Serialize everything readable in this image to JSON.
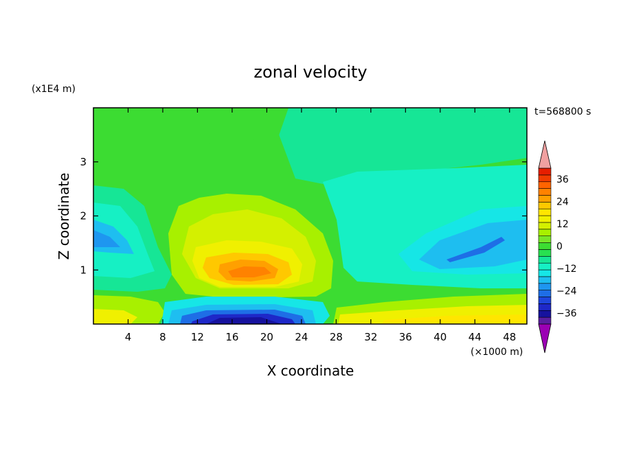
{
  "chart_data": {
    "type": "heatmap",
    "title": "zonal velocity",
    "xlabel": "X coordinate",
    "ylabel": "Z coordinate",
    "x_unit": "(×1000 m)",
    "y_unit": "(x1E4 m)",
    "time_label": "t=568800 s",
    "xlim": [
      0,
      50
    ],
    "ylim": [
      0,
      4
    ],
    "x_ticks": [
      4,
      8,
      12,
      16,
      20,
      24,
      28,
      32,
      36,
      40,
      44,
      48
    ],
    "y_ticks": [
      1,
      2,
      3
    ],
    "colorbar_ticks": [
      36,
      24,
      12,
      0,
      -12,
      -24,
      -36
    ],
    "colorbar_range": [
      -42,
      42
    ],
    "colorbar_step": 4,
    "colorbar_colors": [
      "#9b00b4",
      "#5a1ea0",
      "#16129e",
      "#1e28c8",
      "#1e46dc",
      "#1e6ee6",
      "#1e96f0",
      "#1ebef0",
      "#16e6e6",
      "#16f0c4",
      "#16e696",
      "#28e050",
      "#3cdc32",
      "#78e628",
      "#a8f000",
      "#d4f000",
      "#f0f000",
      "#ffe600",
      "#ffc800",
      "#ffa000",
      "#ff8200",
      "#ff6400",
      "#f03c00",
      "#e61e00",
      "#f0a0a0"
    ],
    "features": [
      {
        "name": "upper jet core",
        "x": 18,
        "z": 0.95,
        "value": 28
      },
      {
        "name": "upper jet",
        "x": 19,
        "z": 1.15,
        "value": 14
      },
      {
        "name": "near-surface negative core",
        "x": 18,
        "z": 0.12,
        "value": -36
      },
      {
        "name": "eastern negative core",
        "x": 44,
        "z": 1.35,
        "value": -26
      },
      {
        "name": "western negative core",
        "x": 1,
        "z": 1.5,
        "value": -16
      },
      {
        "name": "eastern surface positive",
        "x": 40,
        "z": 0.2,
        "value": 8
      },
      {
        "name": "western surface positive",
        "x": 3,
        "z": 0.2,
        "value": 6
      }
    ]
  }
}
